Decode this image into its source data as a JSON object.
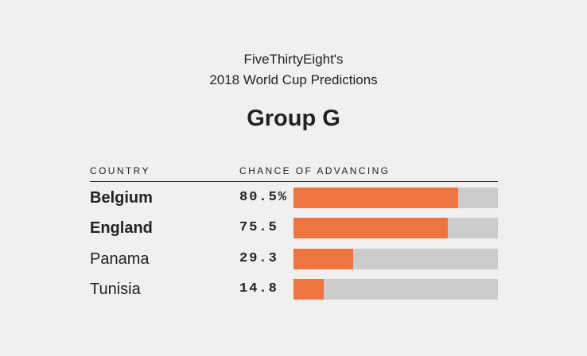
{
  "header": {
    "line1": "FiveThirtyEight's",
    "line2": "2018 World Cup Predictions"
  },
  "group_title": "Group G",
  "columns": {
    "country": "COUNTRY",
    "chance": "CHANCE OF ADVANCING"
  },
  "colors": {
    "bar": "#ef7440",
    "track": "#cccccc",
    "background": "#f0f0f0",
    "text": "#222222"
  },
  "chart_data": {
    "type": "bar",
    "title": "Group G",
    "xlabel": "CHANCE OF ADVANCING",
    "ylabel": "COUNTRY",
    "xlim": [
      0,
      100
    ],
    "categories": [
      "Belgium",
      "England",
      "Panama",
      "Tunisia"
    ],
    "values": [
      80.5,
      75.5,
      29.3,
      14.8
    ],
    "value_labels": [
      "80.5%",
      "75.5",
      "29.3",
      "14.8"
    ],
    "bold": [
      true,
      true,
      false,
      false
    ]
  }
}
